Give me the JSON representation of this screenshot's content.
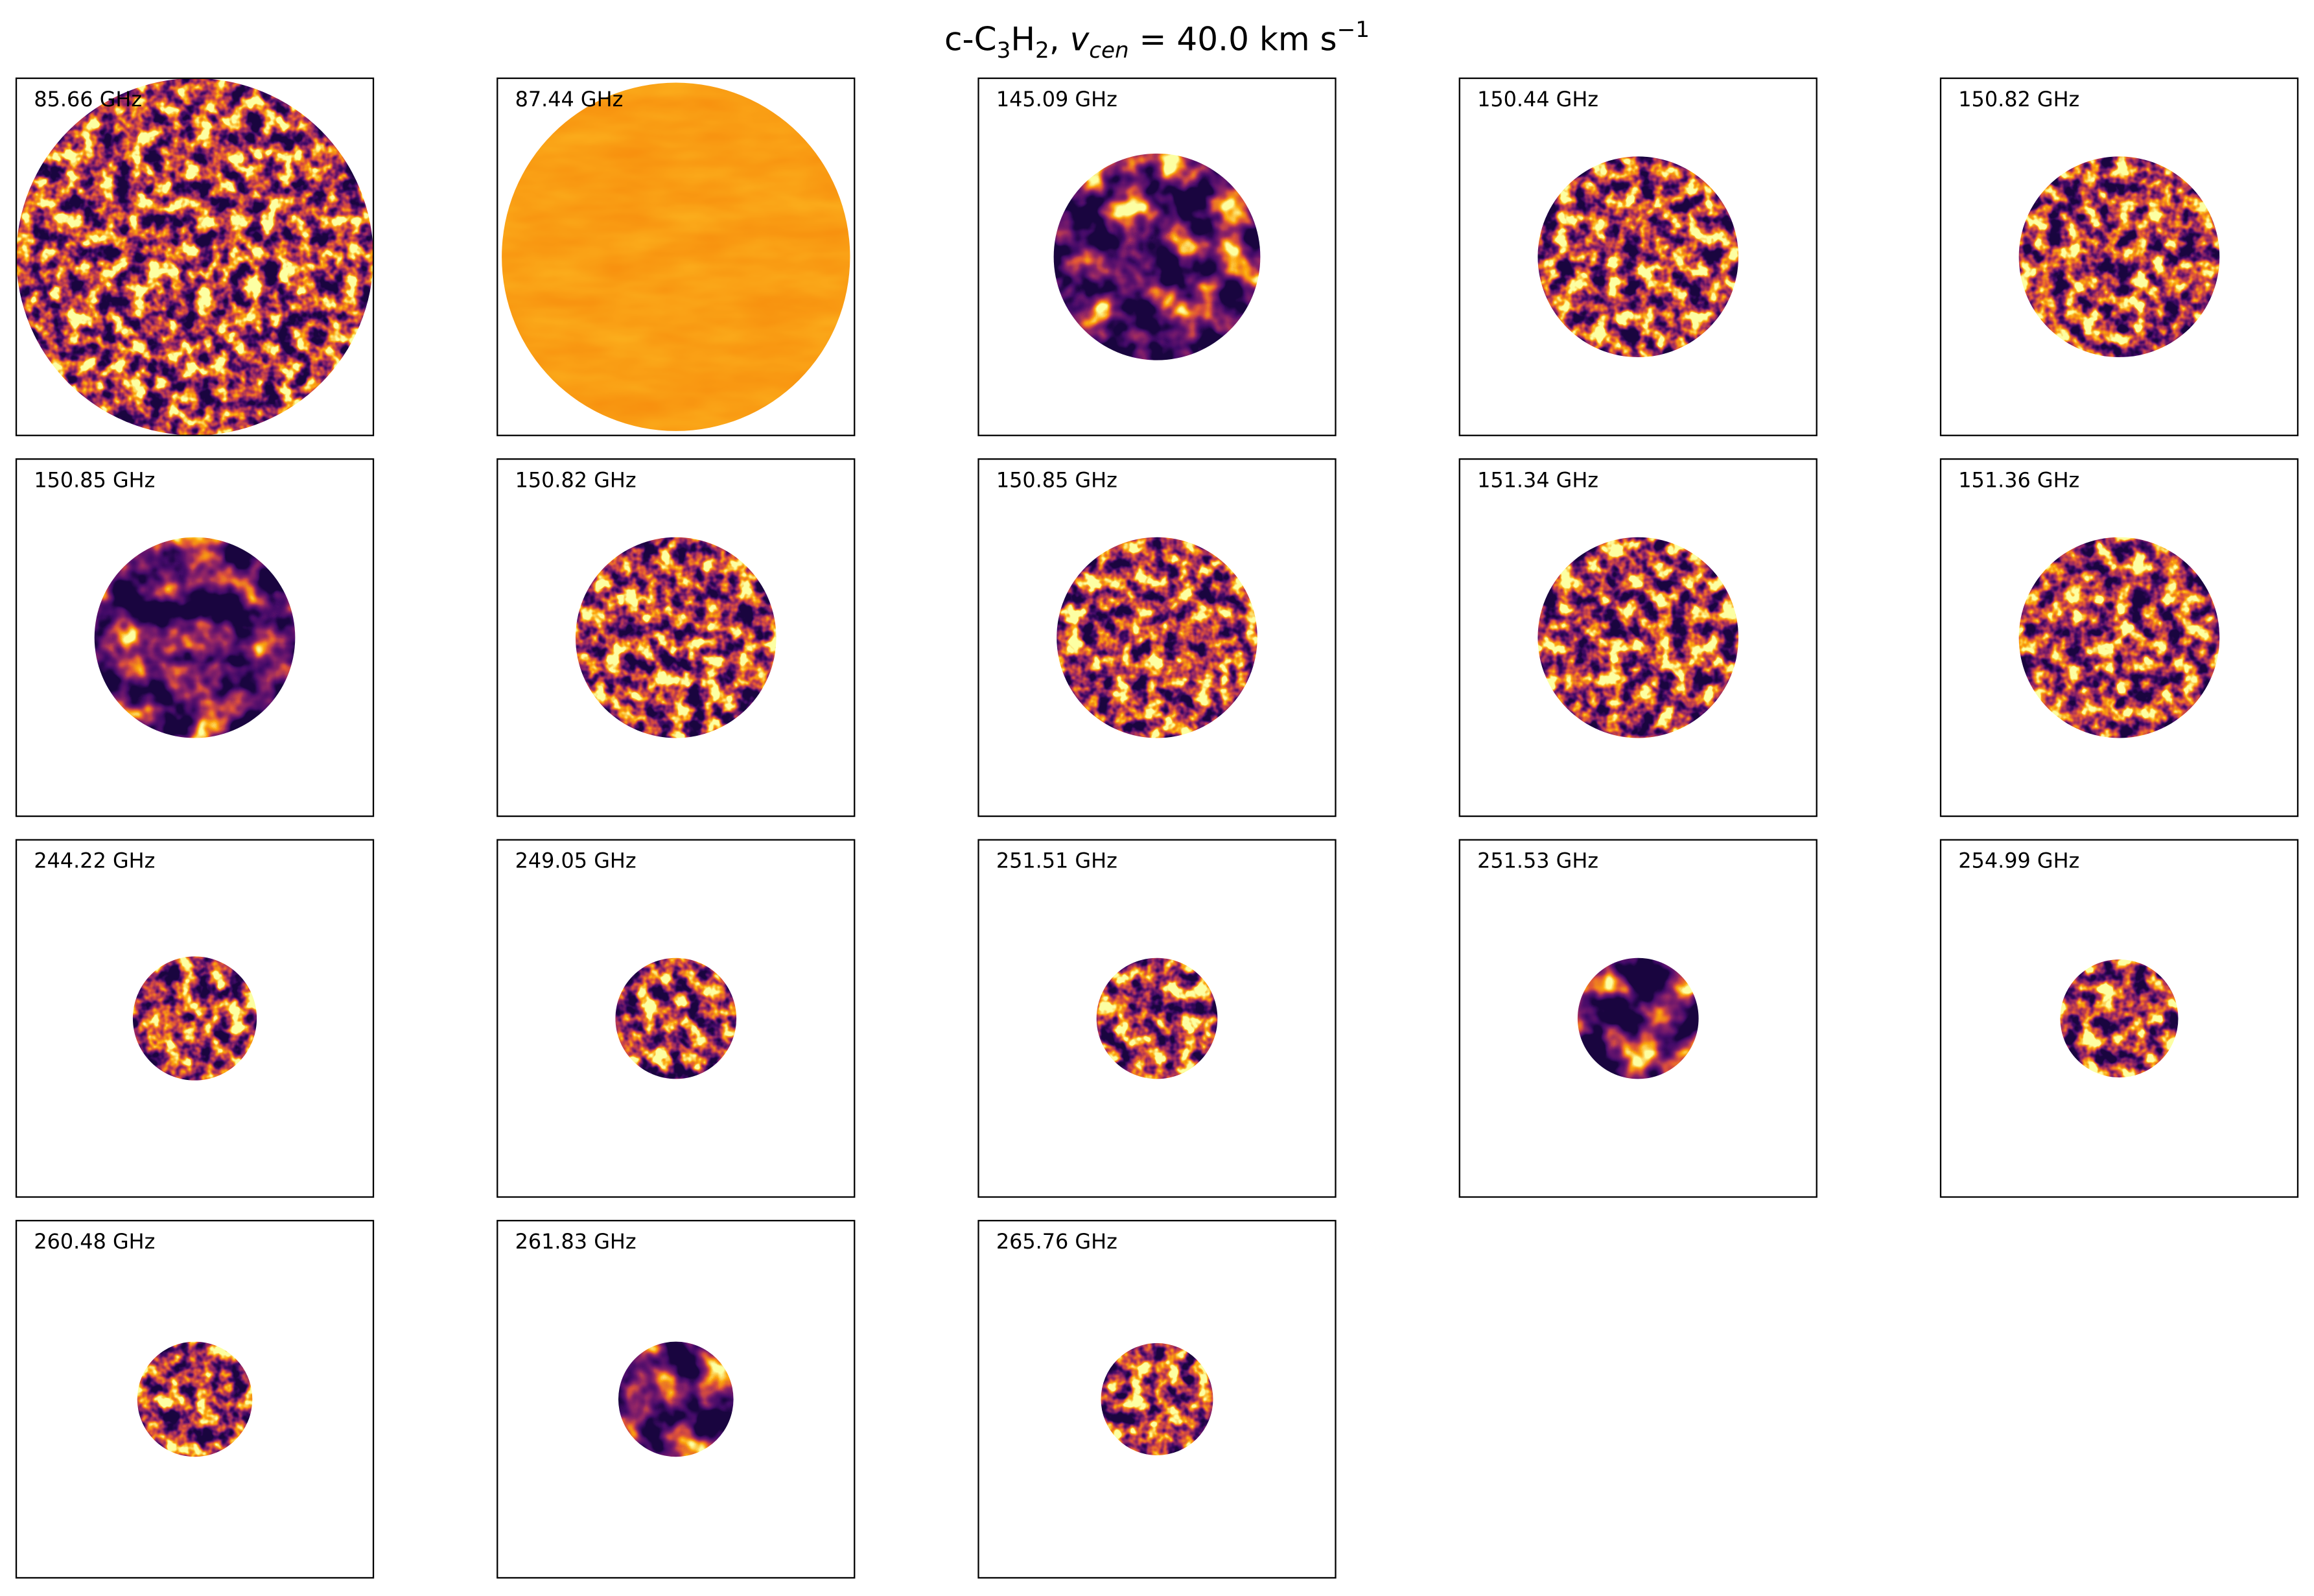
{
  "title": {
    "parts": [
      "c-C",
      "3",
      "H",
      "2",
      ", ",
      "v",
      "cen",
      " =  40.0 km s",
      "−1"
    ]
  },
  "panels": [
    {
      "label": "85.66 GHz"
    },
    {
      "label": "87.44 GHz"
    },
    {
      "label": "145.09 GHz"
    },
    {
      "label": "150.44 GHz"
    },
    {
      "label": "150.82 GHz"
    },
    {
      "label": "150.85 GHz"
    },
    {
      "label": "150.82 GHz"
    },
    {
      "label": "150.85 GHz"
    },
    {
      "label": "151.34 GHz"
    },
    {
      "label": "151.36 GHz"
    },
    {
      "label": "244.22 GHz"
    },
    {
      "label": "249.05 GHz"
    },
    {
      "label": "251.51 GHz"
    },
    {
      "label": "251.53 GHz"
    },
    {
      "label": "254.99 GHz"
    },
    {
      "label": "260.48 GHz"
    },
    {
      "label": "261.83 GHz"
    },
    {
      "label": "265.76 GHz"
    }
  ]
}
